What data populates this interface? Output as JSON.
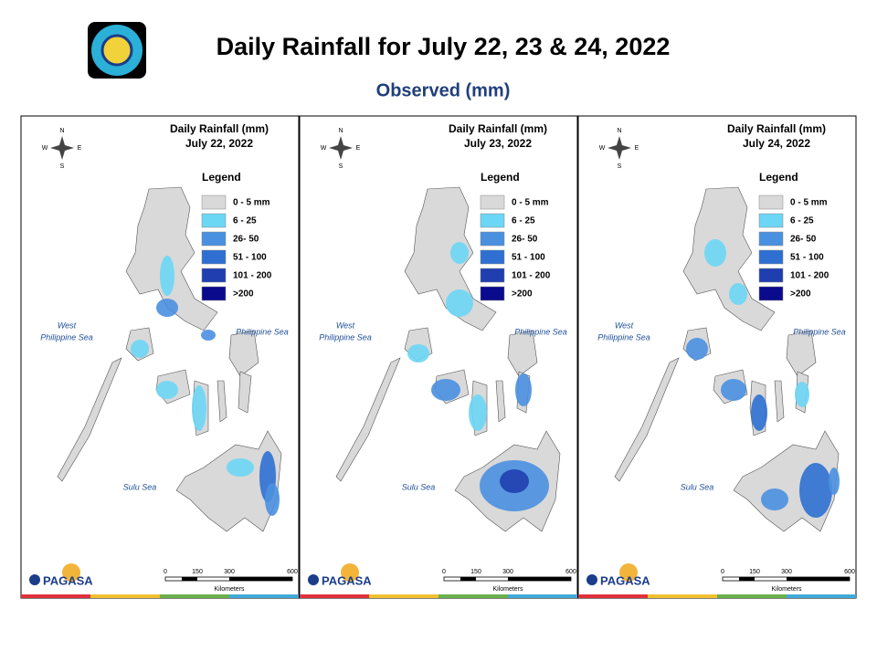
{
  "header": {
    "title": "Daily Rainfall for July 22, 23 & 24, 2022",
    "subtitle": "Observed (mm)"
  },
  "panels": [
    {
      "title": "Daily Rainfall (mm)",
      "date": "July 22, 2022"
    },
    {
      "title": "Daily Rainfall (mm)",
      "date": "July 23, 2022"
    },
    {
      "title": "Daily Rainfall (mm)",
      "date": "July 24, 2022"
    }
  ],
  "legend": {
    "title": "Legend",
    "items": [
      {
        "label": "0 - 5 mm",
        "color": "#d9d9d9"
      },
      {
        "label": "6 - 25",
        "color": "#6cd6f5"
      },
      {
        "label": "26- 50",
        "color": "#4a90e0"
      },
      {
        "label": "51 - 100",
        "color": "#2e6fd1"
      },
      {
        "label": "101 - 200",
        "color": "#1f3fb0"
      },
      {
        "label": ">200",
        "color": "#0a0a8c"
      }
    ]
  },
  "compass": [
    "N",
    "S",
    "W",
    "E"
  ],
  "seas": {
    "west": [
      "West",
      "Philippine Sea"
    ],
    "east": "Philippine Sea",
    "south": "Sulu Sea"
  },
  "scale": {
    "ticks": [
      "0",
      "150",
      "300",
      "600"
    ],
    "unit": "Kilometers"
  },
  "logo": {
    "brand": "PAGASA"
  }
}
